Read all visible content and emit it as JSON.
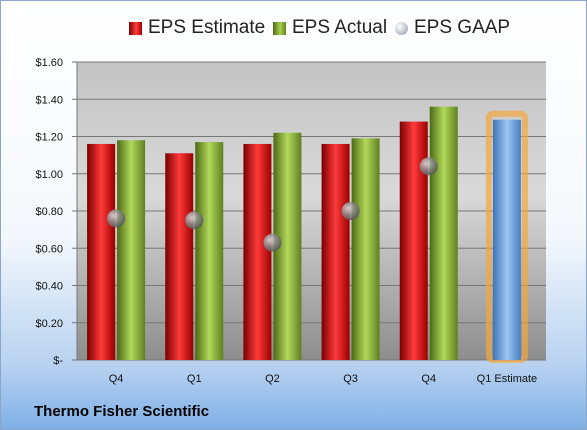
{
  "legend": {
    "estimate": "EPS Estimate",
    "actual": "EPS Actual",
    "gaap": "EPS GAAP"
  },
  "company": "Thermo Fisher Scientific",
  "colors": {
    "estimate": "#d81e1e",
    "actual": "#8fbb3a",
    "gaap": "#9aa3b3",
    "forecast": "#6fa3dd",
    "forecast_glow": "#f5a73f"
  },
  "chart_data": {
    "type": "bar",
    "categories": [
      "Q4",
      "Q1",
      "Q2",
      "Q3",
      "Q4",
      "Q1 Estimate"
    ],
    "series": [
      {
        "name": "EPS Estimate",
        "values": [
          1.16,
          1.11,
          1.16,
          1.16,
          1.28,
          null
        ]
      },
      {
        "name": "EPS Actual",
        "values": [
          1.18,
          1.17,
          1.22,
          1.19,
          1.36,
          null
        ]
      },
      {
        "name": "EPS GAAP",
        "values": [
          0.76,
          0.75,
          0.63,
          0.8,
          1.04,
          null
        ]
      },
      {
        "name": "Q1 Estimate",
        "values": [
          null,
          null,
          null,
          null,
          null,
          1.29
        ]
      }
    ],
    "yticks": [
      "$1.60",
      "$1.40",
      "$1.20",
      "$1.00",
      "$0.80",
      "$0.60",
      "$0.40",
      "$0.20",
      "$-"
    ],
    "ylim": [
      0,
      1.6
    ],
    "grid": true,
    "legend_position": "top"
  }
}
